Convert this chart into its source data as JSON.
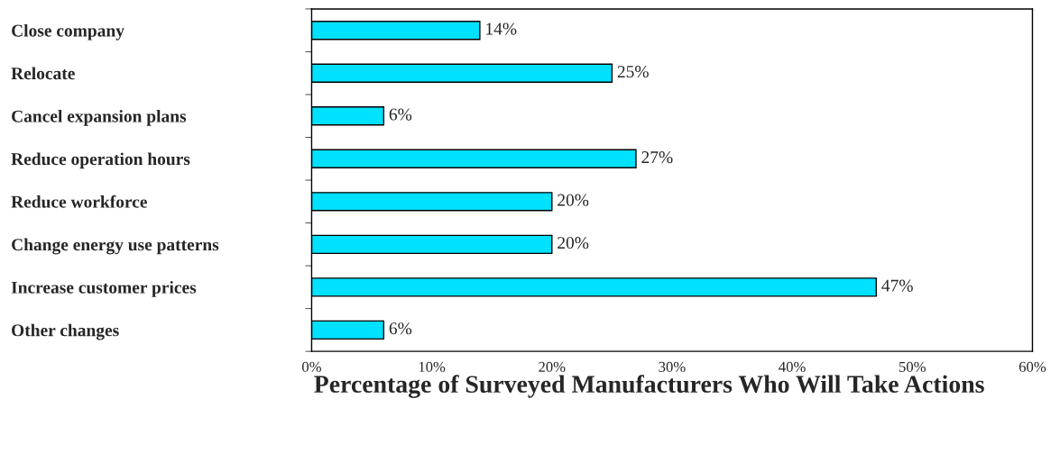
{
  "chart_data": {
    "type": "bar",
    "orientation": "horizontal",
    "xlabel": "Percentage of Surveyed Manufacturers Who Will Take Actions",
    "categories": [
      "Close company",
      "Relocate",
      "Cancel expansion plans",
      "Reduce operation hours",
      "Reduce workforce",
      "Change energy use patterns",
      "Increase customer prices",
      "Other changes"
    ],
    "values": [
      14,
      25,
      6,
      27,
      20,
      20,
      47,
      6
    ],
    "value_labels": [
      "14%",
      "25%",
      "6%",
      "27%",
      "20%",
      "20%",
      "47%",
      "6%"
    ],
    "color": "#00e0ff",
    "xlim": [
      0,
      60
    ],
    "xticks": [
      {
        "value": 0,
        "label": "0%"
      },
      {
        "value": 10,
        "label": "10%"
      },
      {
        "value": 20,
        "label": "20%"
      },
      {
        "value": 30,
        "label": "30%"
      },
      {
        "value": 40,
        "label": "40%"
      },
      {
        "value": 50,
        "label": "50%"
      },
      {
        "value": 60,
        "label": "60%"
      }
    ],
    "grid": false,
    "legend": false
  }
}
